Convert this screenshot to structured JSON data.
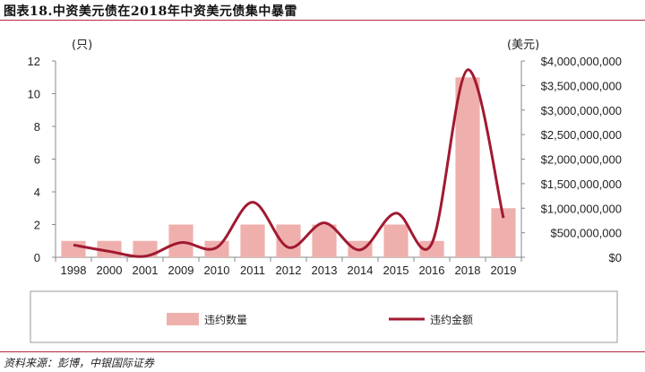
{
  "title": "图表18.中资美元债在2018年中资美元债集中暴雷",
  "source": "资料来源：彭博，中银国际证券",
  "colors": {
    "bar": "#efb0ad",
    "line": "#a01a31",
    "axis": "#888888",
    "rule": "#b22b3a"
  },
  "chart_data": {
    "type": "bar",
    "categories": [
      "1998",
      "2000",
      "2001",
      "2009",
      "2010",
      "2011",
      "2012",
      "2013",
      "2014",
      "2015",
      "2016",
      "2018",
      "2019"
    ],
    "series": [
      {
        "name": "违约数量",
        "type": "bar",
        "axis": "left",
        "values": [
          1,
          1,
          1,
          2,
          1,
          2,
          2,
          2,
          1,
          2,
          1,
          11,
          3
        ]
      },
      {
        "name": "违约金额",
        "type": "line",
        "axis": "right",
        "values": [
          250000000,
          120000000,
          20000000,
          300000000,
          200000000,
          1120000000,
          200000000,
          700000000,
          150000000,
          900000000,
          280000000,
          3820000000,
          800000000
        ]
      }
    ],
    "y_left": {
      "unit": "(只)",
      "ylim": [
        0,
        12
      ],
      "ticks": [
        "0",
        "2",
        "4",
        "6",
        "8",
        "10",
        "12"
      ]
    },
    "y_right": {
      "unit": "(美元)",
      "ylim": [
        0,
        4000000000
      ],
      "ticks": [
        "$0",
        "$500,000,000",
        "$1,000,000,000",
        "$1,500,000,000",
        "$2,000,000,000",
        "$2,500,000,000",
        "$3,000,000,000",
        "$3,500,000,000",
        "$4,000,000,000"
      ]
    },
    "legend": {
      "position": "bottom",
      "items": [
        "违约数量",
        "违约金额"
      ]
    },
    "grid": false
  }
}
